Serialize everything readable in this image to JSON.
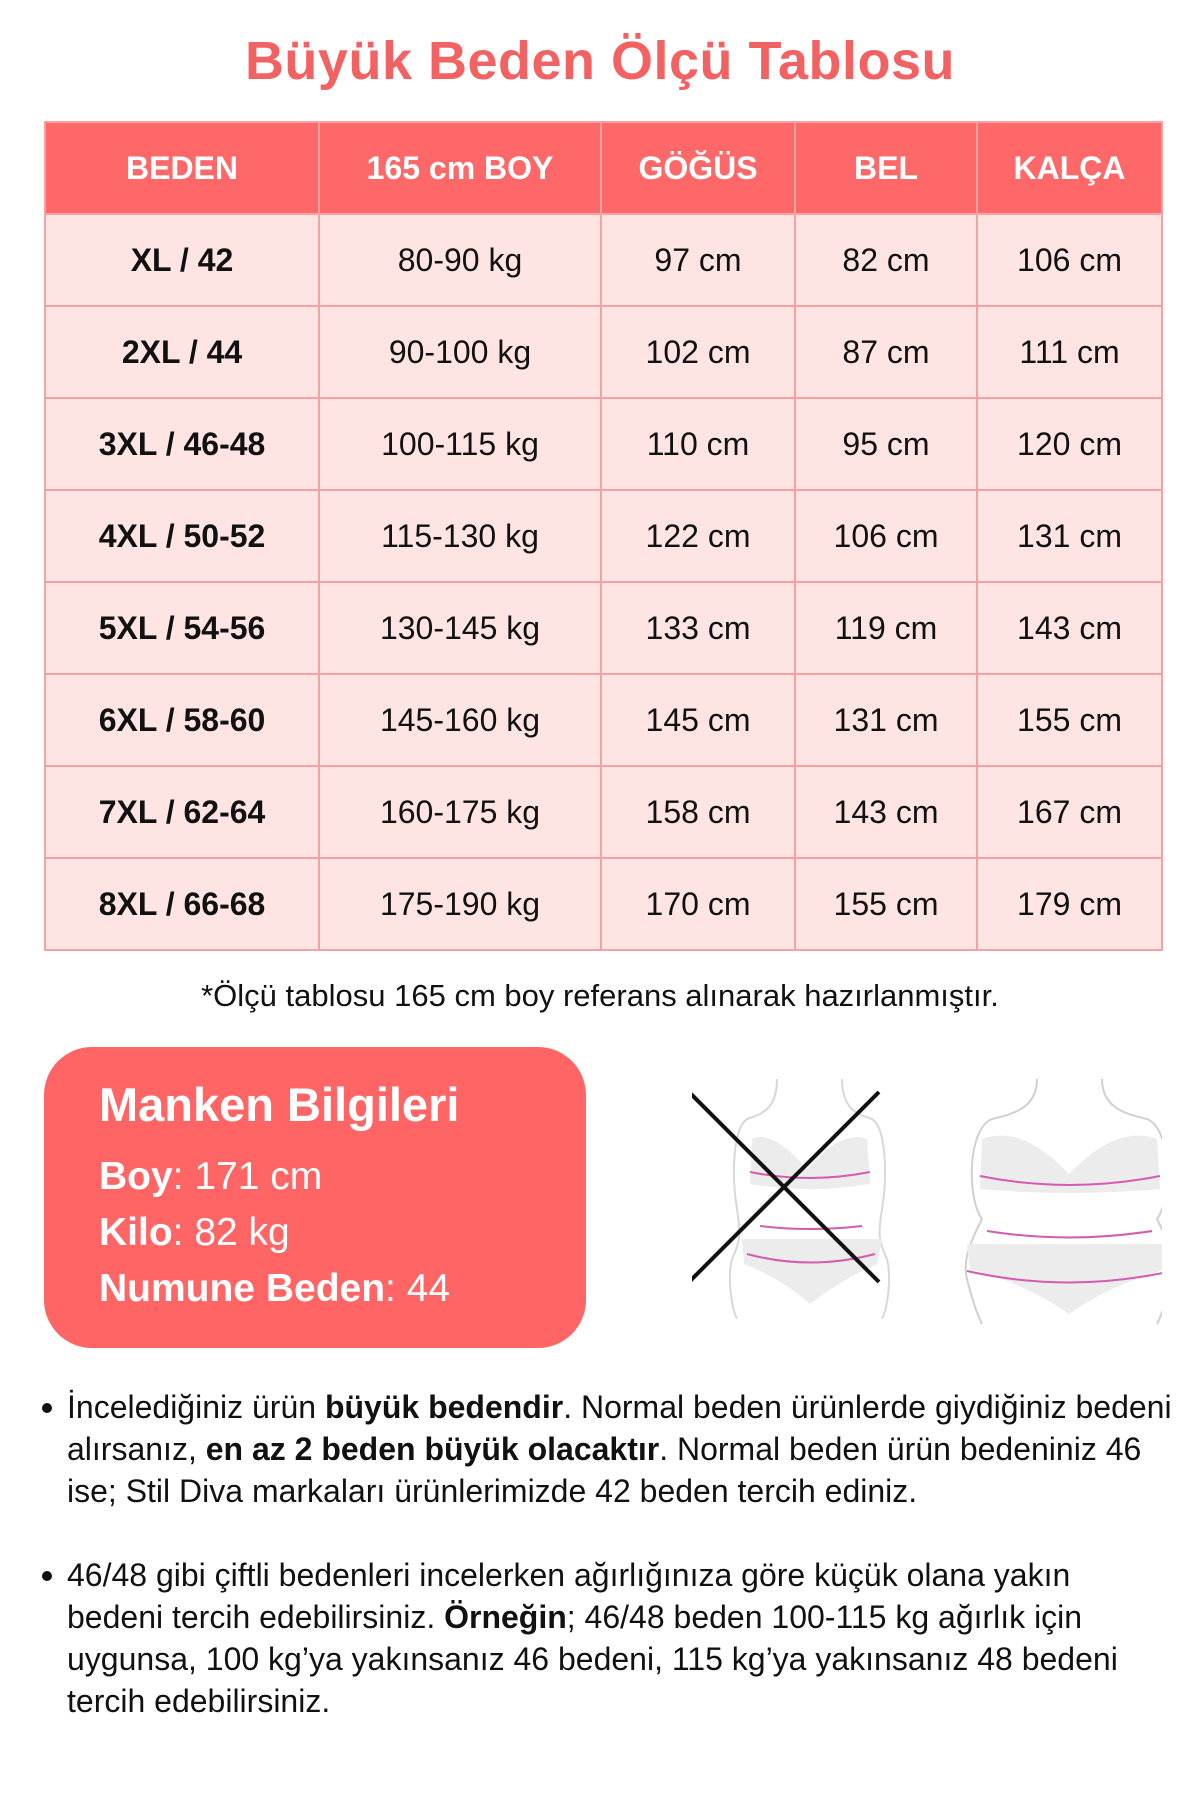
{
  "title": "Büyük Beden Ölçü Tablosu",
  "colors": {
    "accent": "#ff6868",
    "row_bg": "#ffe4e4",
    "border": "#f3a3a3",
    "title": "#f26262"
  },
  "table": {
    "headers": [
      "BEDEN",
      "165 cm BOY",
      "GÖĞÜS",
      "BEL",
      "KALÇA"
    ],
    "rows": [
      [
        "XL / 42",
        "80-90 kg",
        "97 cm",
        "82 cm",
        "106 cm"
      ],
      [
        "2XL / 44",
        "90-100 kg",
        "102 cm",
        "87 cm",
        "111 cm"
      ],
      [
        "3XL / 46-48",
        "100-115 kg",
        "110 cm",
        "95 cm",
        "120 cm"
      ],
      [
        "4XL / 50-52",
        "115-130 kg",
        "122 cm",
        "106 cm",
        "131 cm"
      ],
      [
        "5XL / 54-56",
        "130-145 kg",
        "133 cm",
        "119 cm",
        "143 cm"
      ],
      [
        "6XL / 58-60",
        "145-160 kg",
        "145 cm",
        "131 cm",
        "155 cm"
      ],
      [
        "7XL / 62-64",
        "160-175 kg",
        "158 cm",
        "143 cm",
        "167 cm"
      ],
      [
        "8XL / 66-68",
        "175-190 kg",
        "170 cm",
        "155 cm",
        "179 cm"
      ]
    ]
  },
  "note": "*Ölçü tablosu 165 cm boy referans alınarak hazırlanmıştır.",
  "model": {
    "title": "Manken Bilgileri",
    "boy_label": "Boy",
    "boy_value": ": 171 cm",
    "kilo_label": "Kilo",
    "kilo_value": ": 82 kg",
    "beden_label": "Numune Beden",
    "beden_value": ": 44"
  },
  "figures": {
    "wrong": "body-figure-crossed-out",
    "right": "body-figure-plus-size"
  },
  "bullets": [
    {
      "t1": "İncelediğiniz ürün ",
      "b1": "büyük bedendir",
      "t2": ". Normal beden ürünlerde giydiğiniz bedeni alırsanız, ",
      "b2": "en az 2 beden büyük olacaktır",
      "t3": ". Normal beden ürün bedeniniz 46 ise; Stil Diva markaları ürünlerimizde 42 beden tercih ediniz."
    },
    {
      "t1": "46/48 gibi çiftli bedenleri incelerken ağırlığınıza göre küçük olana yakın bedeni tercih edebilirsiniz. ",
      "b1": "Örneğin",
      "t2": "; 46/48 beden 100-115 kg ağırlık için uygunsa, 100 kg’ya yakınsanız 46 bedeni, 115 kg’ya yakınsanız 48 bedeni tercih edebilirsiniz.",
      "b2": "",
      "t3": ""
    }
  ]
}
